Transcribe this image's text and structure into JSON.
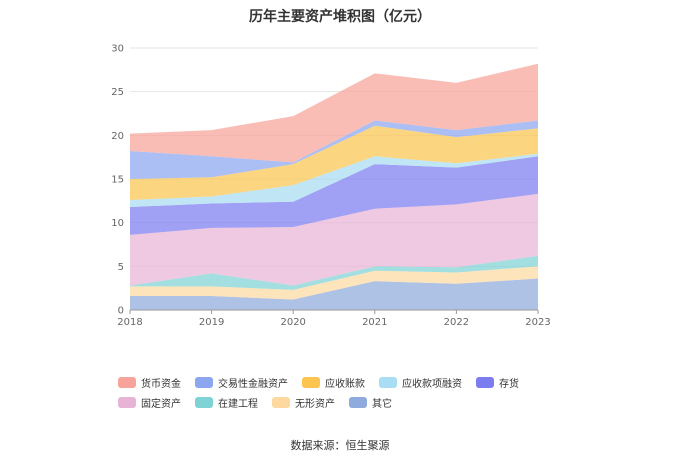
{
  "chart_data": {
    "type": "area",
    "title": "历年主要资产堆积图（亿元）",
    "categories": [
      "2018",
      "2019",
      "2020",
      "2021",
      "2022",
      "2023"
    ],
    "ylim": [
      0,
      30
    ],
    "yticks": [
      0,
      5,
      10,
      15,
      20,
      25,
      30
    ],
    "stacked": true,
    "grid": true,
    "legend_position": "bottom",
    "series": [
      {
        "name": "其它",
        "color": "#8faadc",
        "values": [
          1.6,
          1.6,
          1.2,
          3.3,
          3.0,
          3.6
        ]
      },
      {
        "name": "无形资产",
        "color": "#fdd9a0",
        "values": [
          1.1,
          1.1,
          1.1,
          1.2,
          1.3,
          1.4
        ]
      },
      {
        "name": "在建工程",
        "color": "#7fd3d5",
        "values": [
          0.1,
          1.5,
          0.5,
          0.5,
          0.6,
          1.2
        ]
      },
      {
        "name": "固定资产",
        "color": "#e8b4d6",
        "values": [
          5.8,
          5.2,
          6.7,
          6.6,
          7.2,
          7.1
        ]
      },
      {
        "name": "存货",
        "color": "#7b7cf0",
        "values": [
          3.2,
          2.8,
          2.9,
          5.1,
          4.2,
          4.3
        ]
      },
      {
        "name": "应收款项融资",
        "color": "#a8ddf3",
        "values": [
          0.8,
          0.8,
          1.9,
          0.9,
          0.5,
          0.3
        ]
      },
      {
        "name": "应收账款",
        "color": "#fbc54f",
        "values": [
          2.4,
          2.2,
          2.4,
          3.5,
          3.0,
          2.9
        ]
      },
      {
        "name": "交易性金融资产",
        "color": "#8ca6f0",
        "values": [
          3.2,
          2.4,
          0.2,
          0.6,
          0.8,
          0.9
        ]
      },
      {
        "name": "货币资金",
        "color": "#f8a39a",
        "values": [
          2.0,
          3.0,
          5.3,
          5.4,
          5.4,
          6.5
        ]
      }
    ]
  },
  "legend_order": [
    "货币资金",
    "交易性金融资产",
    "应收账款",
    "应收款项融资",
    "存货",
    "固定资产",
    "在建工程",
    "无形资产",
    "其它"
  ],
  "source": "数据来源：恒生聚源"
}
